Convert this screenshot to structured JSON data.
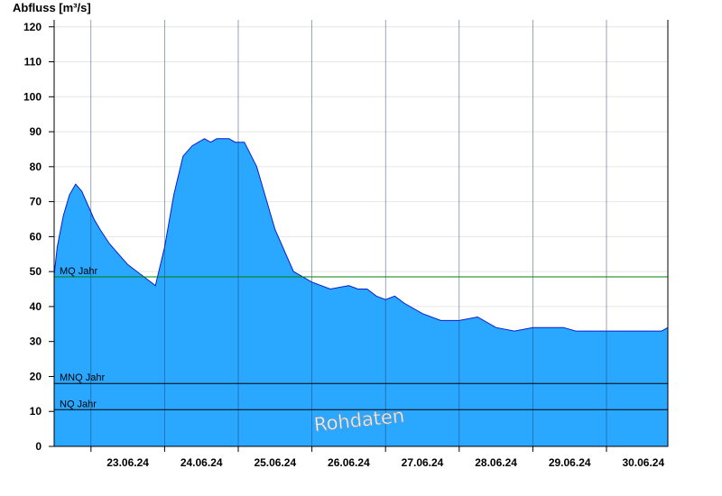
{
  "chart_data": {
    "type": "area",
    "ylabel": "Abfluss [m³/s]",
    "ylim": [
      0,
      122
    ],
    "yticks": [
      0,
      10,
      20,
      30,
      40,
      50,
      60,
      70,
      80,
      90,
      100,
      110,
      120
    ],
    "xlim": [
      "22.06.24 12:00",
      "30.06.24 20:00"
    ],
    "xticks": [
      "23.06.24",
      "24.06.24",
      "25.06.24",
      "26.06.24",
      "27.06.24",
      "28.06.24",
      "29.06.24",
      "30.06.24"
    ],
    "grid": true,
    "series": [
      {
        "x": [
          "22.06.24 12:00",
          "22.06.24 13:00",
          "22.06.24 15:00",
          "22.06.24 17:00",
          "22.06.24 19:00",
          "22.06.24 21:00",
          "22.06.24 23:00",
          "23.06.24 01:00",
          "23.06.24 03:00",
          "23.06.24 06:00",
          "23.06.24 09:00",
          "23.06.24 12:00",
          "23.06.24 15:00",
          "23.06.24 18:00",
          "23.06.24 21:00",
          "24.06.24 00:00",
          "24.06.24 03:00",
          "24.06.24 06:00",
          "24.06.24 09:00",
          "24.06.24 11:00",
          "24.06.24 13:00",
          "24.06.24 15:00",
          "24.06.24 17:00",
          "24.06.24 19:00",
          "24.06.24 21:00",
          "24.06.24 23:00",
          "25.06.24 02:00",
          "25.06.24 06:00",
          "25.06.24 12:00",
          "25.06.24 18:00",
          "26.06.24 00:00",
          "26.06.24 06:00",
          "26.06.24 12:00",
          "26.06.24 15:00",
          "26.06.24 18:00",
          "26.06.24 21:00",
          "27.06.24 00:00",
          "27.06.24 03:00",
          "27.06.24 06:00",
          "27.06.24 12:00",
          "27.06.24 18:00",
          "28.06.24 00:00",
          "28.06.24 06:00",
          "28.06.24 12:00",
          "28.06.24 18:00",
          "29.06.24 00:00",
          "29.06.24 06:00",
          "29.06.24 10:00",
          "29.06.24 14:00",
          "29.06.24 18:00",
          "30.06.24 00:00",
          "30.06.24 06:00",
          "30.06.24 12:00",
          "30.06.24 18:00",
          "30.06.24 20:00"
        ],
        "values": [
          49,
          57,
          66,
          72,
          75,
          73,
          69,
          65,
          62,
          58,
          55,
          52,
          50,
          48,
          46,
          57,
          72,
          83,
          86,
          87,
          88,
          87,
          88,
          88,
          88,
          87,
          87,
          80,
          62,
          50,
          47,
          45,
          46,
          45,
          45,
          43,
          42,
          43,
          41,
          38,
          36,
          36,
          37,
          34,
          33,
          34,
          34,
          34,
          33,
          33,
          33,
          33,
          33,
          33,
          34
        ],
        "color": "#2aa7ff",
        "line_color": "#0a1ecc"
      }
    ],
    "reference_lines": [
      {
        "label": "MQ Jahr",
        "value": 48.5,
        "color": "#008000"
      },
      {
        "label": "MNQ Jahr",
        "value": 18,
        "color": "#000000"
      },
      {
        "label": "NQ Jahr",
        "value": 10.5,
        "color": "#000000"
      }
    ],
    "annotation": "Rohdaten"
  }
}
